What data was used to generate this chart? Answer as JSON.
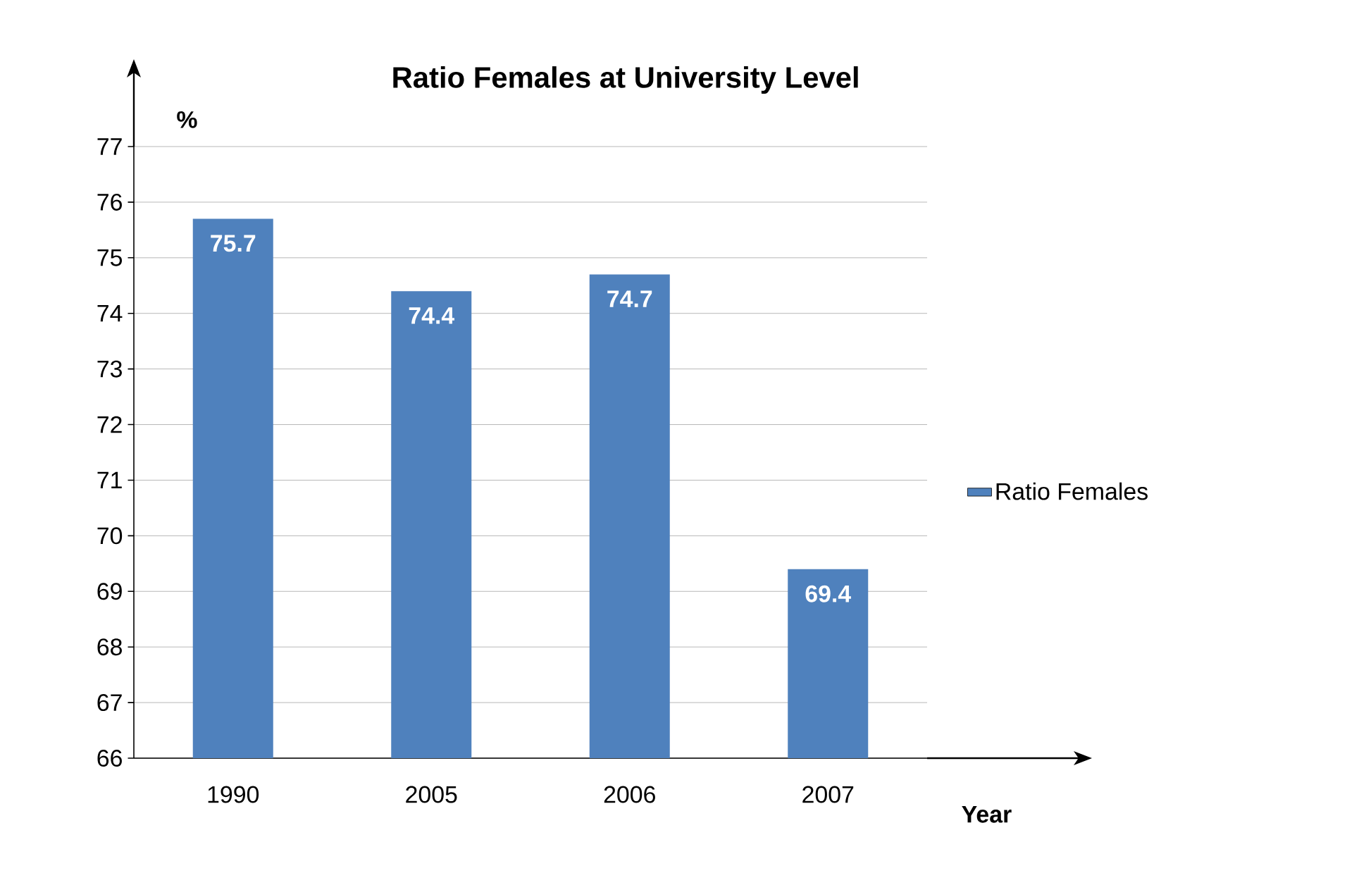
{
  "chart_data": {
    "type": "bar",
    "title": "Ratio  Females at University Level",
    "xlabel": "Year",
    "ylabel": "%",
    "categories": [
      "1990",
      "2005",
      "2006",
      "2007"
    ],
    "series": [
      {
        "name": "Ratio Females",
        "color": "#4f81bd",
        "values": [
          75.7,
          74.4,
          74.7,
          69.4
        ]
      }
    ],
    "ylim": [
      66,
      77
    ],
    "yticks": [
      66,
      67,
      68,
      69,
      70,
      71,
      72,
      73,
      74,
      75,
      76,
      77
    ],
    "grid": "y",
    "legend": "right",
    "data_labels": true
  }
}
